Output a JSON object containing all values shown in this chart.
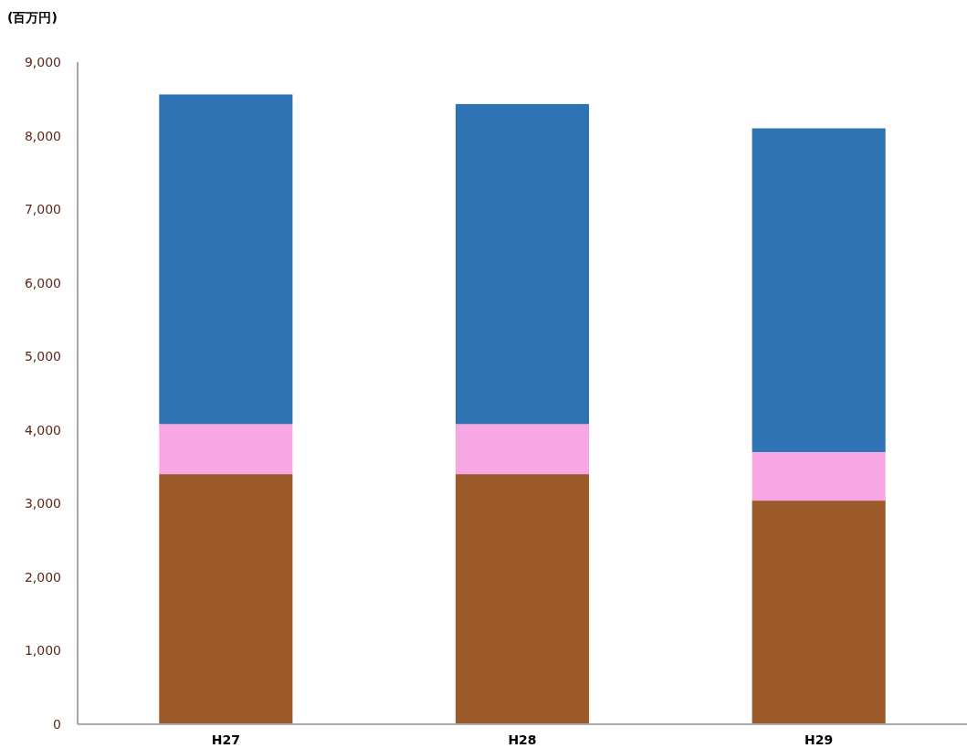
{
  "chart_data": {
    "type": "bar",
    "stacked": true,
    "ylabel": "(百万円)",
    "categories": [
      "H27",
      "H28",
      "H29"
    ],
    "series": [
      {
        "color": "#9c5a2a",
        "values": [
          3400,
          3400,
          3040
        ]
      },
      {
        "color": "#f7a8e4",
        "values": [
          680,
          680,
          660
        ]
      },
      {
        "color": "#2e74b5",
        "values": [
          4480,
          4350,
          4400
        ]
      }
    ],
    "ylim": [
      0,
      9000
    ],
    "yticks": [
      0,
      {
        "value": 1000,
        "label": "1,000"
      },
      {
        "value": 2000,
        "label": "2,000"
      },
      {
        "value": 3000,
        "label": "3,000"
      },
      {
        "value": 4000,
        "label": "4,000"
      },
      {
        "value": 5000,
        "label": "5,000"
      },
      {
        "value": 6000,
        "label": "6,000"
      },
      {
        "value": 7000,
        "label": "7,000"
      },
      {
        "value": 8000,
        "label": "8,000"
      },
      {
        "value": 9000,
        "label": "9,000"
      }
    ],
    "grid": false
  }
}
